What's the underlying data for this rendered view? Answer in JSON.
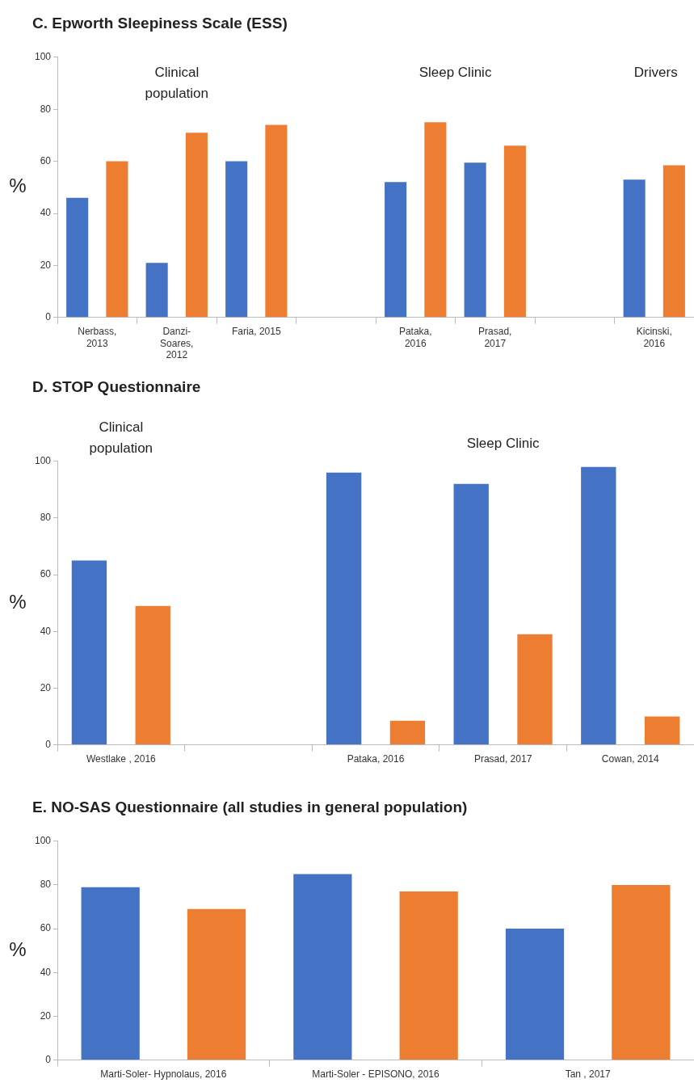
{
  "chart_data": [
    {
      "type": "bar",
      "title": "C. Epworth Sleepiness Scale (ESS)",
      "ylabel": "%",
      "categories": [
        "Nerbass, 2013",
        "Danzi-Soares, 2012",
        "Faria, 2015",
        null,
        "Pataka, 2016",
        "Prasad, 2017",
        null,
        "Kicinski, 2016"
      ],
      "series": [
        {
          "color": "#4472c4",
          "values": [
            46,
            21,
            60,
            null,
            52,
            59.5,
            null,
            53
          ]
        },
        {
          "color": "#ed7d31",
          "values": [
            60,
            71,
            74,
            null,
            75,
            66,
            null,
            58.5
          ]
        }
      ],
      "ylim": [
        0,
        100
      ],
      "yticks": [
        0,
        20,
        40,
        60,
        80,
        100
      ],
      "grid": false,
      "legend": false,
      "annotations": [
        "Clinical population",
        "Sleep Clinic",
        "Drivers"
      ]
    },
    {
      "type": "bar",
      "title": "D. STOP Questionnaire",
      "ylabel": "%",
      "categories": [
        "Westlake , 2016",
        null,
        "Pataka, 2016",
        "Prasad, 2017",
        "Cowan, 2014"
      ],
      "series": [
        {
          "color": "#4472c4",
          "values": [
            65,
            null,
            96,
            92,
            98
          ]
        },
        {
          "color": "#ed7d31",
          "values": [
            49,
            null,
            8.5,
            39,
            10
          ]
        }
      ],
      "ylim": [
        0,
        100
      ],
      "yticks": [
        0,
        20,
        40,
        60,
        80,
        100
      ],
      "grid": false,
      "legend": false,
      "annotations": [
        "Clinical population",
        "Sleep Clinic"
      ]
    },
    {
      "type": "bar",
      "title": "E. NO-SAS Questionnaire (all studies in general population)",
      "ylabel": "%",
      "categories": [
        "Marti-Soler- Hypnolaus, 2016",
        "Marti-Soler - EPISONO, 2016",
        "Tan , 2017"
      ],
      "series": [
        {
          "color": "#4472c4",
          "values": [
            79,
            85,
            60
          ]
        },
        {
          "color": "#ed7d31",
          "values": [
            69,
            77,
            80
          ]
        }
      ],
      "ylim": [
        0,
        100
      ],
      "yticks": [
        0,
        20,
        40,
        60,
        80,
        100
      ],
      "grid": false,
      "legend": false
    }
  ]
}
